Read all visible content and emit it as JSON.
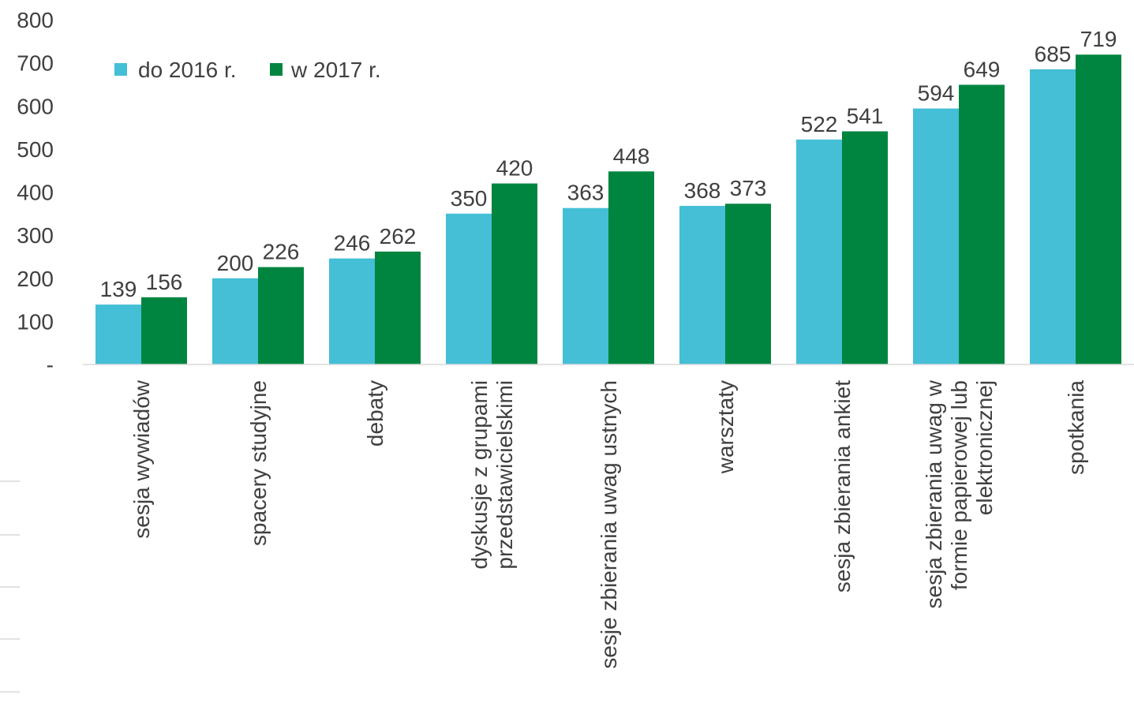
{
  "chart_data": {
    "type": "bar",
    "title": "",
    "xlabel": "",
    "ylabel": "",
    "ylim": [
      0,
      800
    ],
    "yticks": [
      {
        "value": 0,
        "label": "-"
      },
      {
        "value": 100,
        "label": "100"
      },
      {
        "value": 200,
        "label": "200"
      },
      {
        "value": 300,
        "label": "300"
      },
      {
        "value": 400,
        "label": "400"
      },
      {
        "value": 500,
        "label": "500"
      },
      {
        "value": 600,
        "label": "600"
      },
      {
        "value": 700,
        "label": "700"
      },
      {
        "value": 800,
        "label": "800"
      }
    ],
    "grid": false,
    "legend_position": "top-left",
    "categories": [
      [
        "sesja wywiadów"
      ],
      [
        "spacery studyjne"
      ],
      [
        "debaty"
      ],
      [
        "dyskusje z grupami",
        "przedstawicielskimi"
      ],
      [
        "sesje zbierania uwag ustnych"
      ],
      [
        "warsztaty"
      ],
      [
        "sesja zbierania ankiet"
      ],
      [
        "sesja zbierania uwag w",
        "formie papierowej lub",
        "elektronicznej"
      ],
      [
        "spotkania"
      ]
    ],
    "series": [
      {
        "name": "do 2016 r.",
        "color": "#44bfd6",
        "values": [
          139,
          200,
          246,
          350,
          363,
          368,
          522,
          594,
          685
        ]
      },
      {
        "name": "w 2017 r.",
        "color": "#008540",
        "values": [
          156,
          226,
          262,
          420,
          448,
          373,
          541,
          649,
          719
        ]
      }
    ]
  }
}
